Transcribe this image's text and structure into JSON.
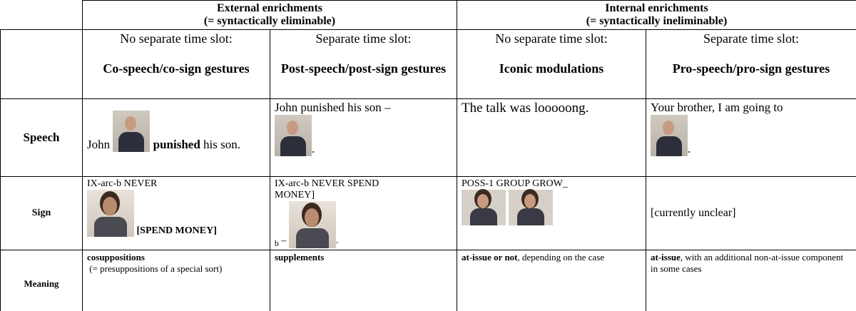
{
  "table": {
    "groups": [
      {
        "title": "External enrichments",
        "subtitle": "(= syntactically eliminable)"
      },
      {
        "title": "Internal enrichments",
        "subtitle": "(= syntactically ineliminable)"
      }
    ],
    "columns": [
      {
        "slot": "No separate time slot:",
        "name": "Co-speech/co-sign gestures"
      },
      {
        "slot": "Separate time slot:",
        "name": "Post-speech/post-sign gestures"
      },
      {
        "slot": "No separate time slot:",
        "name": "Iconic modulations"
      },
      {
        "slot": "Separate time slot:",
        "name": "Pro-speech/pro-sign gestures"
      }
    ],
    "rows": [
      {
        "label": "Speech",
        "cells": [
          {
            "before": "John",
            "bold": "punished",
            "after": "his son."
          },
          {
            "before": "John punished his son –",
            "after": "."
          },
          {
            "text": "The talk was looooong."
          },
          {
            "before": "Your brother, I am going to",
            "after": "."
          }
        ]
      },
      {
        "label": "Sign",
        "cells": [
          {
            "before": "IX-arc-b NEVER",
            "bold": "[SPEND MONEY]"
          },
          {
            "before": "IX-arc-b NEVER SPEND MONEY]",
            "sub": "b",
            "dash": "–",
            "after": "."
          },
          {
            "before": "POSS-1 GROUP GROW_"
          },
          {
            "text": "[currently unclear]"
          }
        ]
      },
      {
        "label": "Meaning",
        "cells": [
          {
            "bold": "cosuppositions",
            "after": "(= presuppositions of a special sort)"
          },
          {
            "bold": "supplements"
          },
          {
            "bold": "at-issue or not",
            "after": ", depending on the case"
          },
          {
            "bold": "at-issue",
            "after": ", with an additional non-at-issue component in some cases"
          }
        ]
      }
    ]
  }
}
